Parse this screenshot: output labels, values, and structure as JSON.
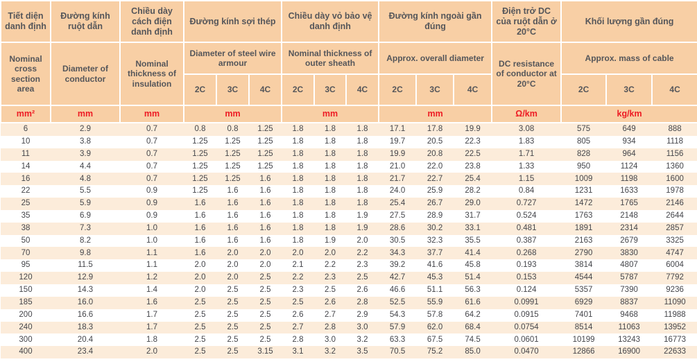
{
  "table": {
    "header_groups": [
      {
        "vn": "Tiết diện danh định",
        "en": "Nominal cross section area",
        "unit": "mm²"
      },
      {
        "vn": "Đường kính ruột dẫn",
        "en": "Diameter of conductor",
        "unit": "mm"
      },
      {
        "vn": "Chiều dày cách điện danh định",
        "en": "Nominal thickness of insulation",
        "unit": "mm"
      },
      {
        "vn": "Đường kính sợi thép",
        "en": "Diameter of steel wire armour",
        "unit": "mm",
        "subcols": [
          "2C",
          "3C",
          "4C"
        ]
      },
      {
        "vn": "Chiều dày vỏ bảo vệ danh định",
        "en": "Nominal thickness of outer sheath",
        "unit": "mm",
        "subcols": [
          "2C",
          "3C",
          "4C"
        ]
      },
      {
        "vn": "Đường kính ngoài gần đúng",
        "en": "Approx. overall diameter",
        "unit": "mm",
        "subcols": [
          "2C",
          "3C",
          "4C"
        ]
      },
      {
        "vn": "Điện trở DC của ruột dẫn ở 20°C",
        "en": "DC resistance of conductor at 20°C",
        "unit": "Ω/km"
      },
      {
        "vn": "Khối lượng gần đúng",
        "en": "Approx. mass of cable",
        "unit": "kg/km",
        "subcols": [
          "2C",
          "3C",
          "4C"
        ]
      }
    ],
    "rows": [
      [
        "6",
        "2.9",
        "0.7",
        "0.8",
        "0.8",
        "1.25",
        "1.8",
        "1.8",
        "1.8",
        "17.1",
        "17.8",
        "19.9",
        "3.08",
        "575",
        "649",
        "888"
      ],
      [
        "10",
        "3.8",
        "0.7",
        "1.25",
        "1.25",
        "1.25",
        "1.8",
        "1.8",
        "1.8",
        "19.7",
        "20.5",
        "22.3",
        "1.83",
        "805",
        "934",
        "1118"
      ],
      [
        "11",
        "3.9",
        "0.7",
        "1.25",
        "1.25",
        "1.25",
        "1.8",
        "1.8",
        "1.8",
        "19.9",
        "20.8",
        "22.5",
        "1.71",
        "828",
        "964",
        "1156"
      ],
      [
        "14",
        "4.4",
        "0.7",
        "1.25",
        "1.25",
        "1.25",
        "1.8",
        "1.8",
        "1.8",
        "21.0",
        "22.0",
        "23.8",
        "1.33",
        "950",
        "1124",
        "1360"
      ],
      [
        "16",
        "4.8",
        "0.7",
        "1.25",
        "1.25",
        "1.6",
        "1.8",
        "1.8",
        "1.8",
        "21.7",
        "22.7",
        "25.4",
        "1.15",
        "1009",
        "1198",
        "1600"
      ],
      [
        "22",
        "5.5",
        "0.9",
        "1.25",
        "1.6",
        "1.6",
        "1.8",
        "1.8",
        "1.8",
        "24.0",
        "25.9",
        "28.2",
        "0.84",
        "1231",
        "1633",
        "1978"
      ],
      [
        "25",
        "5.9",
        "0.9",
        "1.6",
        "1.6",
        "1.6",
        "1.8",
        "1.8",
        "1.8",
        "25.4",
        "26.7",
        "29.0",
        "0.727",
        "1472",
        "1765",
        "2146"
      ],
      [
        "35",
        "6.9",
        "0.9",
        "1.6",
        "1.6",
        "1.6",
        "1.8",
        "1.8",
        "1.9",
        "27.5",
        "28.9",
        "31.7",
        "0.524",
        "1763",
        "2148",
        "2644"
      ],
      [
        "38",
        "7.3",
        "1.0",
        "1.6",
        "1.6",
        "1.6",
        "1.8",
        "1.8",
        "1.9",
        "28.6",
        "30.2",
        "33.1",
        "0.481",
        "1891",
        "2314",
        "2857"
      ],
      [
        "50",
        "8.2",
        "1.0",
        "1.6",
        "1.6",
        "1.6",
        "1.8",
        "1.9",
        "2.0",
        "30.5",
        "32.3",
        "35.5",
        "0.387",
        "2163",
        "2679",
        "3325"
      ],
      [
        "70",
        "9.8",
        "1.1",
        "1.6",
        "2.0",
        "2.0",
        "2.0",
        "2.0",
        "2.2",
        "34.3",
        "37.7",
        "41.4",
        "0.268",
        "2790",
        "3830",
        "4747"
      ],
      [
        "95",
        "11.5",
        "1.1",
        "2.0",
        "2.0",
        "2.0",
        "2.1",
        "2.2",
        "2.3",
        "39.2",
        "41.6",
        "45.8",
        "0.193",
        "3814",
        "4807",
        "6004"
      ],
      [
        "120",
        "12.9",
        "1.2",
        "2.0",
        "2.0",
        "2.5",
        "2.2",
        "2.3",
        "2.5",
        "42.7",
        "45.3",
        "51.4",
        "0.153",
        "4544",
        "5787",
        "7792"
      ],
      [
        "150",
        "14.3",
        "1.4",
        "2.0",
        "2.5",
        "2.5",
        "2.3",
        "2.5",
        "2.6",
        "46.6",
        "51.1",
        "56.3",
        "0.124",
        "5357",
        "7390",
        "9236"
      ],
      [
        "185",
        "16.0",
        "1.6",
        "2.5",
        "2.5",
        "2.5",
        "2.5",
        "2.6",
        "2.8",
        "52.5",
        "55.9",
        "61.6",
        "0.0991",
        "6929",
        "8837",
        "11090"
      ],
      [
        "200",
        "16.6",
        "1.7",
        "2.5",
        "2.5",
        "2.5",
        "2.6",
        "2.7",
        "2.9",
        "54.3",
        "57.8",
        "64.2",
        "0.0915",
        "7401",
        "9468",
        "11988"
      ],
      [
        "240",
        "18.3",
        "1.7",
        "2.5",
        "2.5",
        "2.5",
        "2.7",
        "2.8",
        "3.0",
        "57.9",
        "62.0",
        "68.4",
        "0.0754",
        "8514",
        "11063",
        "13952"
      ],
      [
        "300",
        "20.4",
        "1.8",
        "2.5",
        "2.5",
        "2.5",
        "2.8",
        "3.0",
        "3.2",
        "63.3",
        "67.5",
        "74.5",
        "0.0601",
        "10199",
        "13243",
        "16773"
      ],
      [
        "400",
        "23.4",
        "2.0",
        "2.5",
        "2.5",
        "3.15",
        "3.1",
        "3.2",
        "3.5",
        "70.5",
        "75.2",
        "85.0",
        "0.0470",
        "12866",
        "16900",
        "22633"
      ]
    ]
  },
  "colors": {
    "header_bg": "#f8cfa5",
    "stripe_bg": "#fcecda",
    "unit_text": "#ed1c24",
    "header_text": "#55565a",
    "data_text": "#45464b"
  }
}
